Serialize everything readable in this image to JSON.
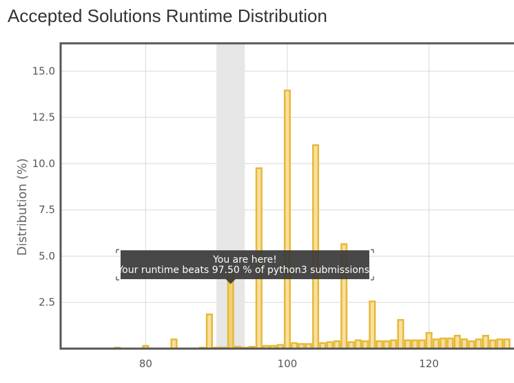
{
  "page_title": "Accepted Solutions Runtime Distribution",
  "colors": {
    "bar_fill": "#f8e09e",
    "bar_stroke": "#e7b838",
    "highlight_fill": "#f0cf76",
    "highlight_band": "#e6e6e6",
    "grid": "#d8d8d8",
    "frame": "#555555",
    "tooltip_bg": "#3a3a3a"
  },
  "tooltip": {
    "line1": "You are here!",
    "line2": "Your runtime beats 97.50 % of python3 submissions."
  },
  "chart_data": {
    "type": "bar",
    "title": "Accepted Solutions Runtime Distribution",
    "xlabel": "",
    "ylabel": "Distribution (%)",
    "xlim": [
      68,
      132
    ],
    "ylim": [
      0,
      16.5
    ],
    "x_ticks": [
      "80",
      "100",
      "120"
    ],
    "x_tick_values": [
      80,
      100,
      120
    ],
    "y_ticks": [
      "2.5",
      "5.0",
      "7.5",
      "10.0",
      "12.5",
      "15.0"
    ],
    "y_tick_values": [
      2.5,
      5.0,
      7.5,
      10.0,
      12.5,
      15.0
    ],
    "grid": true,
    "highlight": {
      "x": 92,
      "range": [
        90,
        94
      ]
    },
    "series": [
      {
        "x": [
          76,
          80,
          84,
          88,
          89,
          90,
          91,
          92,
          93,
          94,
          95,
          96,
          97,
          98,
          99,
          100,
          101,
          102,
          103,
          104,
          105,
          106,
          107,
          108,
          109,
          110,
          111,
          112,
          113,
          114,
          115,
          116,
          117,
          118,
          119,
          120,
          121,
          122,
          123,
          124,
          125,
          126,
          127,
          128,
          129,
          130,
          131
        ],
        "values": [
          0.05,
          0.15,
          0.5,
          0.05,
          1.85,
          0.05,
          0.05,
          4.2,
          0.1,
          0.05,
          0.1,
          9.75,
          0.15,
          0.15,
          0.2,
          13.95,
          0.3,
          0.25,
          0.25,
          11.0,
          0.3,
          0.35,
          0.4,
          5.65,
          0.35,
          0.45,
          0.4,
          2.55,
          0.4,
          0.4,
          0.45,
          1.55,
          0.45,
          0.45,
          0.45,
          0.85,
          0.5,
          0.55,
          0.55,
          0.7,
          0.5,
          0.4,
          0.5,
          0.7,
          0.45,
          0.5,
          0.5
        ]
      }
    ]
  }
}
